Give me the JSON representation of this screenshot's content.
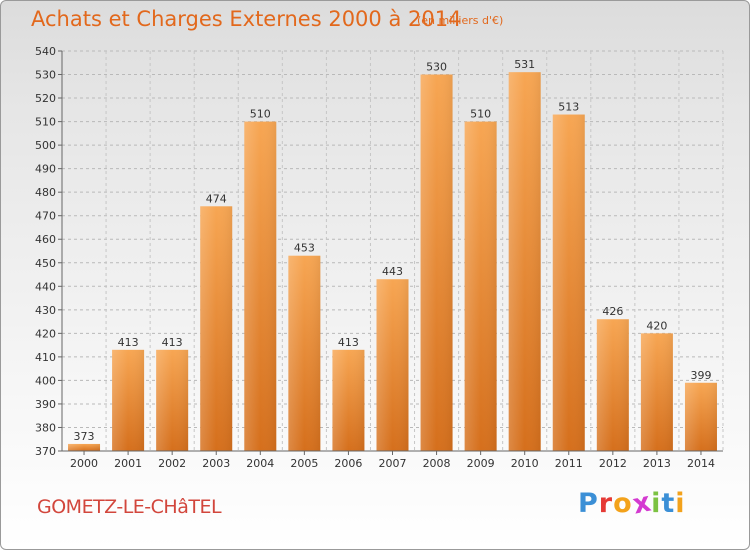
{
  "header": {
    "title": "Achats et Charges Externes 2000 à 2014",
    "subtitle": "(en milliers d'€)"
  },
  "footer": {
    "city": "GOMETZ-LE-CHâTEL",
    "logo_letters": [
      "P",
      "r",
      "o",
      "x",
      "i",
      "t",
      "i"
    ],
    "logo_colors": [
      "#3b8fd6",
      "#e53935",
      "#f3a21b",
      "#d43ad0",
      "#7cc242",
      "#3b8fd6",
      "#f3a21b"
    ]
  },
  "colors": {
    "bar_light": "#f7a653",
    "bar_dark": "#d56f1c",
    "title": "#e2681c",
    "city": "#d2463c"
  },
  "chart_data": {
    "type": "bar",
    "categories": [
      "2000",
      "2001",
      "2002",
      "2003",
      "2004",
      "2005",
      "2006",
      "2007",
      "2008",
      "2009",
      "2010",
      "2011",
      "2012",
      "2013",
      "2014"
    ],
    "values": [
      373,
      413,
      413,
      474,
      510,
      453,
      413,
      443,
      530,
      510,
      531,
      513,
      426,
      420,
      399
    ],
    "y_ticks": [
      370,
      380,
      390,
      400,
      410,
      420,
      430,
      440,
      450,
      460,
      470,
      480,
      490,
      500,
      510,
      520,
      530,
      540
    ],
    "ylim": [
      370,
      540
    ],
    "grid": true,
    "legend": "none"
  }
}
